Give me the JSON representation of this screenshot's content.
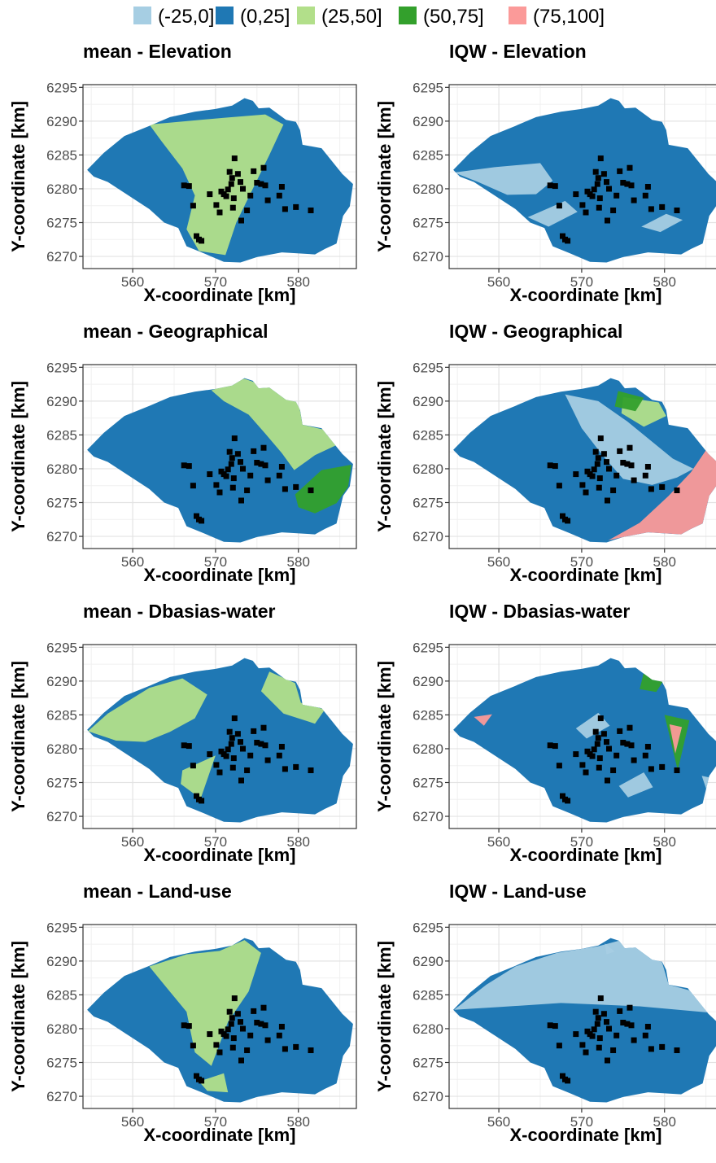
{
  "legend": {
    "items": [
      {
        "label": "(-25,0]",
        "color": "#A6CEE3"
      },
      {
        "label": "(0,25]",
        "color": "#1F78B4"
      },
      {
        "label": "(25,50]",
        "color": "#B2DF8A"
      },
      {
        "label": "(50,75]",
        "color": "#33A02C"
      },
      {
        "label": "(75,100]",
        "color": "#FB9A99"
      }
    ]
  },
  "axes": {
    "xlabel": "X-coordinate [km]",
    "ylabel": "Y-coordinate [km]",
    "xticks": [
      560,
      570,
      580
    ],
    "yticks": [
      6270,
      6275,
      6280,
      6285,
      6290,
      6295
    ],
    "xlim": [
      554,
      587
    ],
    "ylim": [
      6268.2,
      6295.4
    ]
  },
  "panels": [
    {
      "title": "mean - Elevation",
      "base": "#1F78B4",
      "overlays": [
        {
          "color": "#B2DF8A",
          "shape": "wedge-band"
        }
      ]
    },
    {
      "title": "IQW - Elevation",
      "base": "#1F78B4",
      "overlays": [
        {
          "color": "#A6CEE3",
          "shape": "west-strip"
        }
      ]
    },
    {
      "title": "mean - Geographical",
      "base": "#1F78B4",
      "overlays": [
        {
          "color": "#B2DF8A",
          "shape": "north-east"
        },
        {
          "color": "#33A02C",
          "shape": "east-patch"
        }
      ]
    },
    {
      "title": "IQW - Geographical",
      "base": "#1F78B4",
      "overlays": [
        {
          "color": "#A6CEE3",
          "shape": "diagonal"
        },
        {
          "color": "#B2DF8A",
          "shape": "north-east-small"
        },
        {
          "color": "#33A02C",
          "shape": "north-patch"
        },
        {
          "color": "#FB9A99",
          "shape": "south-east"
        }
      ]
    },
    {
      "title": "mean - Dbasias-water",
      "base": "#1F78B4",
      "overlays": [
        {
          "color": "#B2DF8A",
          "shape": "west-mixed"
        },
        {
          "color": "#B2DF8A",
          "shape": "north-east-ring"
        }
      ]
    },
    {
      "title": "IQW - Dbasias-water",
      "base": "#1F78B4",
      "overlays": [
        {
          "color": "#A6CEE3",
          "shape": "scattered"
        },
        {
          "color": "#33A02C",
          "shape": "triangle"
        },
        {
          "color": "#FB9A99",
          "shape": "triangle-core"
        }
      ]
    },
    {
      "title": "mean - Land-use",
      "base": "#1F78B4",
      "overlays": [
        {
          "color": "#B2DF8A",
          "shape": "north-band"
        }
      ]
    },
    {
      "title": "IQW - Land-use",
      "base": "#1F78B4",
      "overlays": [
        {
          "color": "#A6CEE3",
          "shape": "north-wide"
        }
      ]
    }
  ],
  "stations": [
    [
      566.2,
      6280.5
    ],
    [
      566.8,
      6280.4
    ],
    [
      567.3,
      6277.5
    ],
    [
      567.7,
      6273.0
    ],
    [
      568.0,
      6272.5
    ],
    [
      568.3,
      6272.3
    ],
    [
      569.3,
      6279.2
    ],
    [
      570.1,
      6277.6
    ],
    [
      570.7,
      6279.6
    ],
    [
      571.0,
      6279.2
    ],
    [
      571.3,
      6278.9
    ],
    [
      571.5,
      6279.9
    ],
    [
      571.7,
      6282.5
    ],
    [
      571.9,
      6280.7
    ],
    [
      572.0,
      6281.6
    ],
    [
      572.2,
      6278.6
    ],
    [
      572.1,
      6277.2
    ],
    [
      572.3,
      6284.5
    ],
    [
      572.7,
      6282.2
    ],
    [
      573.0,
      6281.0
    ],
    [
      573.3,
      6280.0
    ],
    [
      573.1,
      6275.3
    ],
    [
      574.6,
      6282.6
    ],
    [
      575.0,
      6280.9
    ],
    [
      575.5,
      6280.7
    ],
    [
      576.0,
      6280.5
    ],
    [
      575.8,
      6283.1
    ],
    [
      574.2,
      6279.0
    ],
    [
      576.3,
      6278.3
    ],
    [
      577.7,
      6279.0
    ],
    [
      578.0,
      6280.3
    ],
    [
      578.4,
      6277.0
    ],
    [
      579.7,
      6277.3
    ],
    [
      581.5,
      6276.8
    ],
    [
      573.8,
      6276.8
    ],
    [
      570.5,
      6276.5
    ]
  ]
}
